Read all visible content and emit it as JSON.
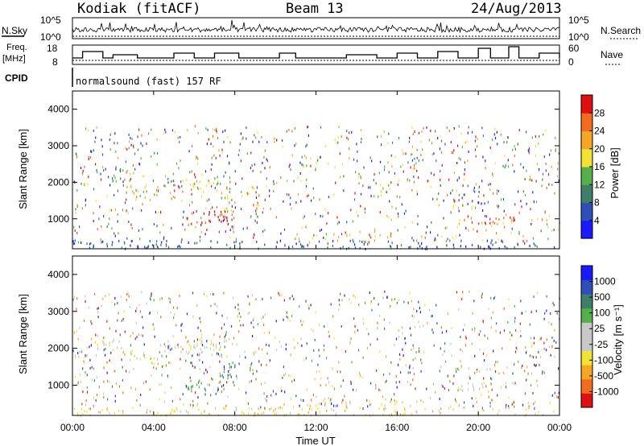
{
  "header": {
    "station": "Kodiak (fitACF)",
    "beam": "Beam 13",
    "date": "24/Aug/2013"
  },
  "top_panels": {
    "nsky_label": "N.Sky",
    "nsky_ticks": [
      "10^5",
      "10^0"
    ],
    "nsearch_label": "N.Search",
    "nsearch_ticks": [
      "10^5",
      "10^0"
    ],
    "freq_label_line1": "Freq.",
    "freq_label_line2": "[MHz]",
    "freq_ticks": [
      "18",
      "8"
    ],
    "nave_label": "Nave",
    "nave_ticks": [
      "60",
      "0"
    ],
    "cpid_label": "CPID",
    "cpid_text": "normalsound (fast) 157 RF"
  },
  "colors": {
    "power_scale": [
      "#1a1aff",
      "#2f4fb8",
      "#3f7f6a",
      "#56b04a",
      "#f2e234",
      "#f5a623",
      "#f26b1e",
      "#e01010"
    ],
    "velocity_scale": [
      "#e01010",
      "#f26b1e",
      "#f5a623",
      "#f2e234",
      "#c8c8c8",
      "#c8c8c8",
      "#56b04a",
      "#3f7f6a",
      "#2f4fb8",
      "#1a1aff"
    ]
  },
  "chart_data": [
    {
      "type": "heatmap",
      "name": "power",
      "ylabel": "Slant Range [km]",
      "yticks": [
        "4000",
        "3000",
        "2000",
        "1000"
      ],
      "ylim": [
        180,
        4500
      ],
      "xlim": [
        0,
        24
      ],
      "colorbar_label": "Power [dB]",
      "colorbar_ticks": [
        "28",
        "24",
        "20",
        "16",
        "12",
        "8",
        "4"
      ],
      "regions": [
        {
          "t0": 0.2,
          "t1": 0.8,
          "r0": 1750,
          "r1": 2000,
          "level": 3
        },
        {
          "t0": 1.0,
          "t1": 2.4,
          "r0": 2100,
          "r1": 2400,
          "level": 2
        },
        {
          "t0": 2.4,
          "t1": 4.2,
          "r0": 1600,
          "r1": 1950,
          "level": 4
        },
        {
          "t0": 4.2,
          "t1": 5.4,
          "r0": 1900,
          "r1": 2150,
          "level": 2
        },
        {
          "t0": 5.4,
          "t1": 6.6,
          "r0": 1850,
          "r1": 2350,
          "level": 4
        },
        {
          "t0": 6.6,
          "t1": 7.9,
          "r0": 1750,
          "r1": 2200,
          "level": 3
        },
        {
          "t0": 7.2,
          "t1": 8.0,
          "r0": 1200,
          "r1": 1800,
          "level": 4
        },
        {
          "t0": 5.6,
          "t1": 8.1,
          "r0": 850,
          "r1": 1250,
          "level": 7
        },
        {
          "t0": 8.6,
          "t1": 9.2,
          "r0": 1300,
          "r1": 1750,
          "level": 5
        },
        {
          "t0": 0.0,
          "t1": 23.8,
          "r0": 200,
          "r1": 430,
          "level": 1
        },
        {
          "t0": 18.8,
          "t1": 21.8,
          "r0": 850,
          "r1": 1100,
          "level": 6
        },
        {
          "t0": 18.8,
          "t1": 20.6,
          "r0": 1400,
          "r1": 1550,
          "level": 1
        },
        {
          "t0": 11.8,
          "t1": 16.0,
          "r0": 520,
          "r1": 620,
          "level": 4
        },
        {
          "t0": 23.3,
          "t1": 23.8,
          "r0": 700,
          "r1": 900,
          "level": 3
        }
      ]
    },
    {
      "type": "heatmap",
      "name": "velocity",
      "ylabel": "Slant Range [km]",
      "yticks": [
        "4000",
        "3000",
        "2000",
        "1000"
      ],
      "ylim": [
        180,
        4500
      ],
      "xlim": [
        0,
        24
      ],
      "colorbar_label": "Velocity [m s⁻¹]",
      "colorbar_ticks": [
        "1000",
        "500",
        "100",
        "25",
        "-25",
        "-100",
        "-500",
        "-1000"
      ],
      "xlabel": "Time UT",
      "xticks": [
        "00:00",
        "04:00",
        "08:00",
        "12:00",
        "16:00",
        "20:00",
        "00:00"
      ],
      "regions": [
        {
          "t0": 0.2,
          "t1": 0.8,
          "r0": 1750,
          "r1": 2000,
          "level": 4
        },
        {
          "t0": 1.0,
          "t1": 2.4,
          "r0": 2100,
          "r1": 2400,
          "level": 4
        },
        {
          "t0": 2.4,
          "t1": 4.2,
          "r0": 1600,
          "r1": 1950,
          "level": 3
        },
        {
          "t0": 4.2,
          "t1": 5.4,
          "r0": 1900,
          "r1": 2150,
          "level": 5
        },
        {
          "t0": 5.4,
          "t1": 7.9,
          "r0": 1750,
          "r1": 2300,
          "level": 4
        },
        {
          "t0": 7.2,
          "t1": 8.0,
          "r0": 1200,
          "r1": 1800,
          "level": 7
        },
        {
          "t0": 5.6,
          "t1": 8.1,
          "r0": 850,
          "r1": 1250,
          "level": 6
        },
        {
          "t0": 8.6,
          "t1": 9.2,
          "r0": 1300,
          "r1": 1750,
          "level": 7
        },
        {
          "t0": 0.0,
          "t1": 23.8,
          "r0": 200,
          "r1": 430,
          "level": 3
        },
        {
          "t0": 11.8,
          "t1": 16.0,
          "r0": 450,
          "r1": 620,
          "level": 3
        },
        {
          "t0": 18.8,
          "t1": 21.8,
          "r0": 850,
          "r1": 1100,
          "level": 4
        },
        {
          "t0": 18.8,
          "t1": 20.6,
          "r0": 1400,
          "r1": 1550,
          "level": 5
        }
      ]
    }
  ]
}
